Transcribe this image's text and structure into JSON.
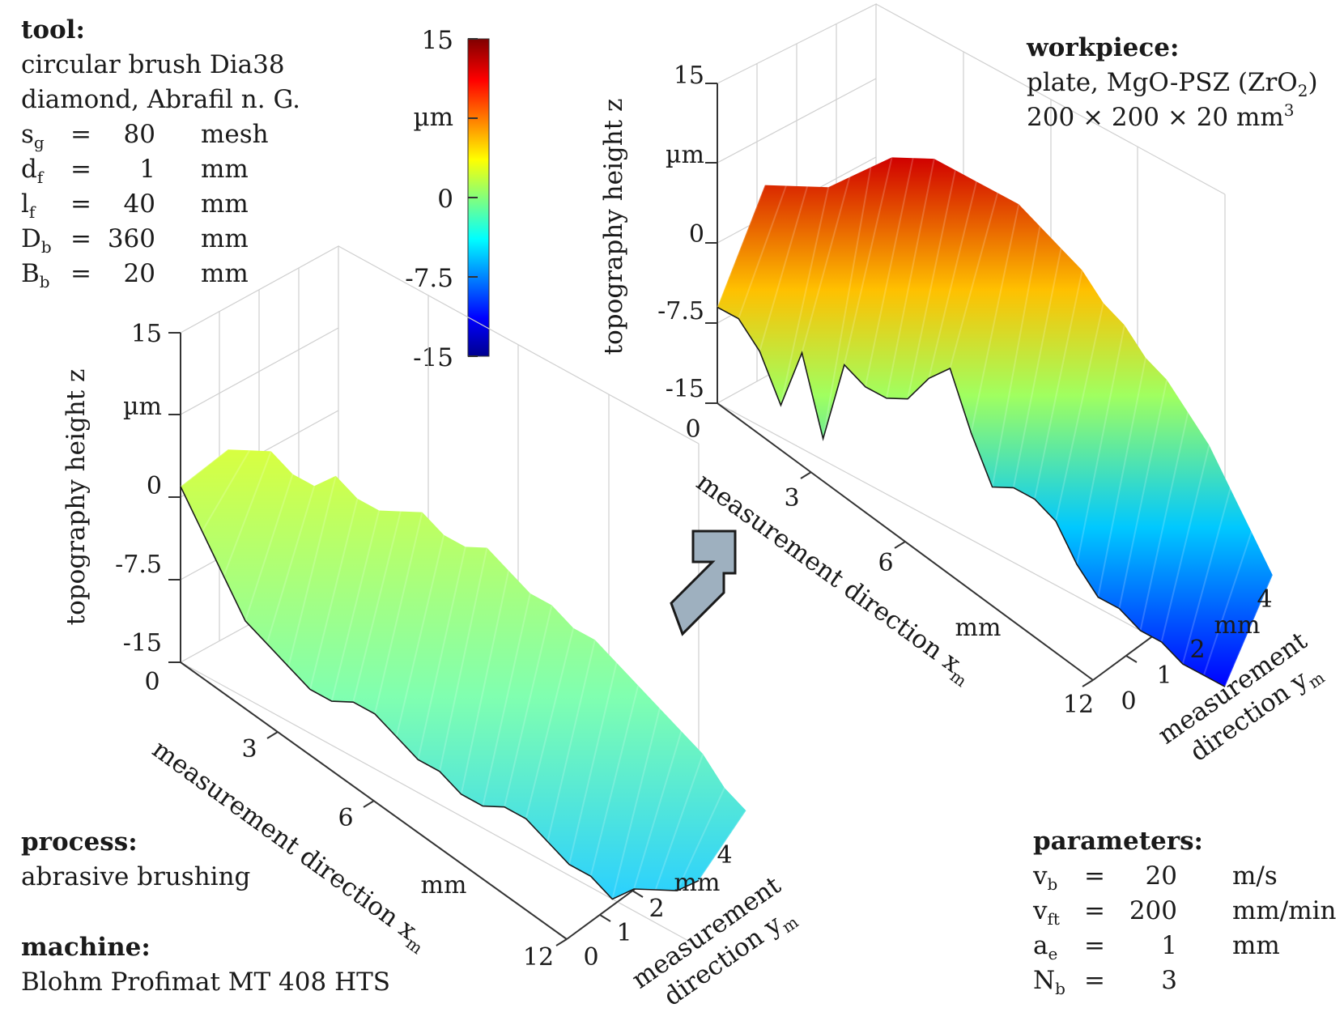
{
  "tool": {
    "heading": "tool:",
    "line1": "circular brush Dia38",
    "line2": "diamond, Abrafil n. G.",
    "params": [
      {
        "sym": "s",
        "sub": "g",
        "eq": "=",
        "val": "80",
        "unit": "mesh"
      },
      {
        "sym": "d",
        "sub": "f",
        "eq": "=",
        "val": "1",
        "unit": "mm"
      },
      {
        "sym": "l",
        "sub": "f",
        "eq": "=",
        "val": "40",
        "unit": "mm"
      },
      {
        "sym": "D",
        "sub": "b",
        "eq": "=",
        "val": "360",
        "unit": "mm"
      },
      {
        "sym": "B",
        "sub": "b",
        "eq": "=",
        "val": "20",
        "unit": "mm"
      }
    ]
  },
  "workpiece": {
    "heading": "workpiece:",
    "line1_a": "plate, MgO-PSZ (ZrO",
    "line1_sub": "2",
    "line1_b": ")",
    "line2_a": "200 × 200 × 20 mm",
    "line2_sup": "3"
  },
  "process": {
    "heading": "process:",
    "text": "abrasive brushing"
  },
  "machine": {
    "heading": "machine:",
    "text": "Blohm Profimat MT 408 HTS"
  },
  "parameters": {
    "heading": "parameters:",
    "rows": [
      {
        "sym": "v",
        "sub": "b",
        "eq": "=",
        "val": "20",
        "unit": "m/s"
      },
      {
        "sym": "v",
        "sub": "ft",
        "eq": "=",
        "val": "200",
        "unit": "mm/min"
      },
      {
        "sym": "a",
        "sub": "e",
        "eq": "=",
        "val": "1",
        "unit": "mm"
      },
      {
        "sym": "N",
        "sub": "b",
        "eq": "=",
        "val": "3",
        "unit": ""
      }
    ]
  },
  "colorbar": {
    "unit": "µm",
    "ticks": [
      "15",
      "0",
      "-7.5",
      "-15"
    ],
    "range": [
      -15,
      15
    ],
    "colormap": [
      "#00008f",
      "#0000ff",
      "#00ffff",
      "#ffff00",
      "#ff0000",
      "#800000"
    ]
  },
  "arrow_color": "#9eb0bf",
  "chart_data": [
    {
      "type": "surface",
      "title": "",
      "zlabel": "topography height z",
      "zunit": "µm",
      "zticks": [
        "15",
        "0",
        "-7.5",
        "-15"
      ],
      "zlim": [
        -15,
        15
      ],
      "xlabel": "measurement direction x",
      "xlabel_sub": "m",
      "xunit": "mm",
      "xticks": [
        "0",
        "3",
        "6",
        "12"
      ],
      "xlim": [
        0,
        12
      ],
      "ylabel_line1": "measurement",
      "ylabel_line2": "direction y",
      "ylabel_sub": "m",
      "yunit": "mm",
      "yticks": [
        "0",
        "1",
        "2",
        "4"
      ],
      "ylim": [
        0,
        4
      ],
      "profile_x": [
        0,
        0.5,
        1,
        1.5,
        2,
        2.5,
        3,
        3.5,
        4,
        4.5,
        5,
        5.5,
        6,
        6.5,
        7,
        7.5,
        8,
        8.5,
        9,
        9.5,
        10,
        10.5,
        11,
        11.5,
        12
      ],
      "profile_z": [
        1,
        -2,
        -5,
        -8,
        -9,
        -10,
        -11,
        -11,
        -10,
        -10,
        -11,
        -12,
        -12,
        -13,
        -13,
        -12,
        -12,
        -13,
        -14,
        -14,
        -15,
        -13,
        -12,
        -11,
        -9
      ],
      "top_z": [
        2,
        3,
        4,
        3,
        3,
        5,
        4,
        4,
        5,
        6,
        5,
        5,
        6,
        5,
        4,
        4,
        3,
        3,
        2,
        1,
        0,
        -1,
        -2,
        -4,
        -5
      ]
    },
    {
      "type": "surface",
      "title": "",
      "zlabel": "topography height z",
      "zunit": "µm",
      "zticks": [
        "15",
        "0",
        "-7.5",
        "-15"
      ],
      "zlim": [
        -15,
        15
      ],
      "xlabel": "measurement direction x",
      "xlabel_sub": "m",
      "xunit": "mm",
      "xticks": [
        "0",
        "3",
        "6",
        "12"
      ],
      "xlim": [
        0,
        12
      ],
      "ylabel_line1": "measurement",
      "ylabel_line2": "direction y",
      "ylabel_sub": "m",
      "yunit": "mm",
      "yticks": [
        "0",
        "1",
        "2",
        "4"
      ],
      "ylim": [
        0,
        4
      ],
      "profile_x": [
        0,
        0.5,
        1,
        1.5,
        2,
        2.5,
        3,
        3.5,
        4,
        4.5,
        5,
        5.5,
        6,
        6.5,
        7,
        7.5,
        8,
        8.5,
        9,
        9.5,
        10,
        10.5,
        11,
        11.5,
        12
      ],
      "profile_z": [
        -6,
        -6,
        -8,
        -12,
        -6,
        -13,
        -5,
        -6,
        -6,
        -5,
        -2,
        0,
        -5,
        -9,
        -8,
        -8,
        -9,
        -12,
        -14,
        -14,
        -15,
        -15,
        -16,
        -16,
        -16
      ],
      "top_z": [
        3,
        4,
        5,
        6,
        8,
        10,
        12,
        13,
        14,
        14,
        14,
        14,
        14,
        13,
        12,
        11,
        9,
        8,
        6,
        5,
        3,
        1,
        -2,
        -5,
        -8
      ]
    }
  ]
}
